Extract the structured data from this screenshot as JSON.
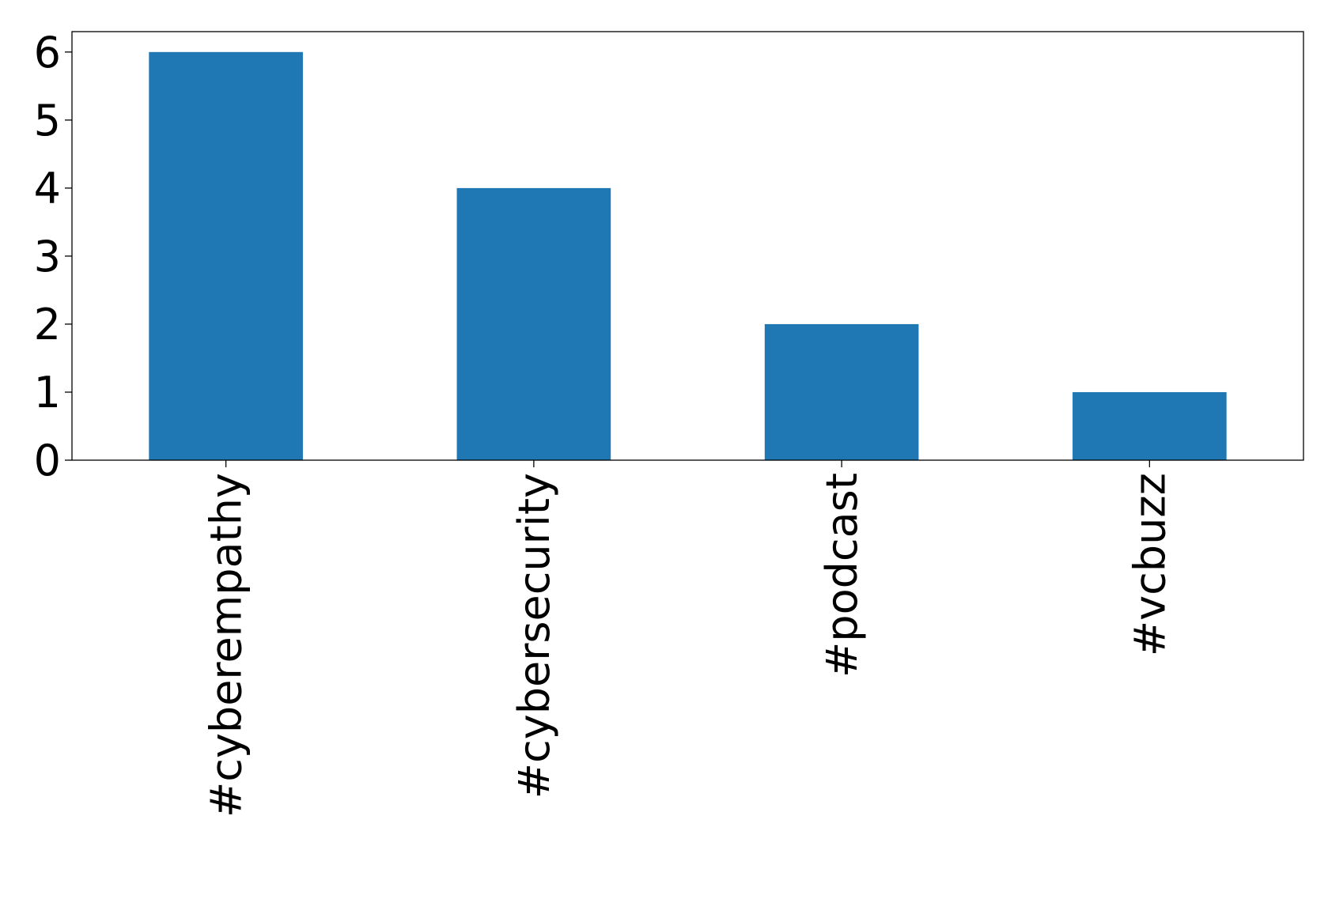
{
  "chart_data": {
    "type": "bar",
    "categories": [
      "#cyberempathy",
      "#cybersecurity",
      "#podcast",
      "#vcbuzz"
    ],
    "values": [
      6,
      4,
      2,
      1
    ],
    "title": "",
    "xlabel": "",
    "ylabel": "",
    "ylim": [
      0,
      6.3
    ],
    "yticks": [
      0,
      1,
      2,
      3,
      4,
      5,
      6
    ],
    "grid": false,
    "legend": "none",
    "bar_color": "#1f77b4",
    "axis_color": "#000000"
  }
}
